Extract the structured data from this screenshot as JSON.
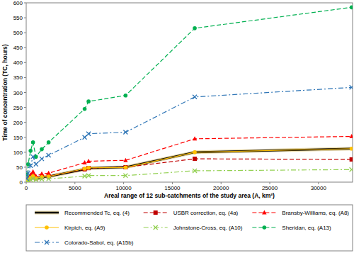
{
  "chart_data": {
    "type": "line",
    "x_label": "Areal range of 12 sub-catchments of the study area (A, km²)",
    "y_label": "Time of concentration (TC, hours)",
    "x": [
      60,
      200,
      450,
      700,
      1000,
      1600,
      2300,
      6000,
      6400,
      10200,
      17300,
      33400
    ],
    "xlim": [
      0,
      33500
    ],
    "xticks": [
      0,
      5000,
      10000,
      15000,
      20000,
      25000,
      30000
    ],
    "ylim": [
      0,
      600
    ],
    "yticks": [
      0,
      50,
      100,
      150,
      200,
      250,
      300,
      350,
      400,
      450,
      500,
      550,
      600
    ],
    "grid": false,
    "legend": "bottom",
    "series": [
      {
        "name": "Recommended Tc, eq. (4)",
        "color": "#000000",
        "marker": "none",
        "line_style": "solid",
        "values": [
          3,
          8,
          15,
          20,
          13,
          17,
          19,
          43,
          47,
          50,
          100,
          112
        ]
      },
      {
        "name": "USBR correction, eq. (4a)",
        "color": "#c00000",
        "marker": "square",
        "line_style": "dashed",
        "values": [
          3,
          8,
          15,
          22,
          13,
          18,
          20,
          43,
          47,
          50,
          78,
          76
        ]
      },
      {
        "name": "Bransby-Williams, eq. (A8)",
        "color": "#ff0000",
        "marker": "triangle",
        "line_style": "dashed",
        "values": [
          5,
          12,
          25,
          35,
          20,
          28,
          30,
          65,
          70,
          73,
          145,
          153
        ]
      },
      {
        "name": "Kirpich, eq. (A9)",
        "color": "#ffc000",
        "marker": "circle",
        "line_style": "solid",
        "values": [
          3,
          8,
          15,
          20,
          13,
          17,
          19,
          45,
          48,
          49,
          100,
          112
        ]
      },
      {
        "name": "Johnstone-Cross, eq. (A10)",
        "color": "#92d050",
        "marker": "x",
        "line_style": "dashdot",
        "values": [
          2,
          5,
          8,
          12,
          8,
          10,
          11,
          20,
          22,
          22,
          38,
          42
        ]
      },
      {
        "name": "Sheridan, eq. (A13)",
        "color": "#00b050",
        "marker": "circle",
        "line_style": "dashed",
        "values": [
          25,
          60,
          105,
          133,
          85,
          110,
          133,
          245,
          270,
          290,
          515,
          585
        ]
      },
      {
        "name": "Colorado-Sabol, eq. (A15b)",
        "color": "#2e75b6",
        "marker": "x",
        "line_style": "dashdot",
        "values": [
          12,
          30,
          55,
          85,
          60,
          78,
          90,
          150,
          162,
          167,
          285,
          317
        ]
      }
    ]
  }
}
